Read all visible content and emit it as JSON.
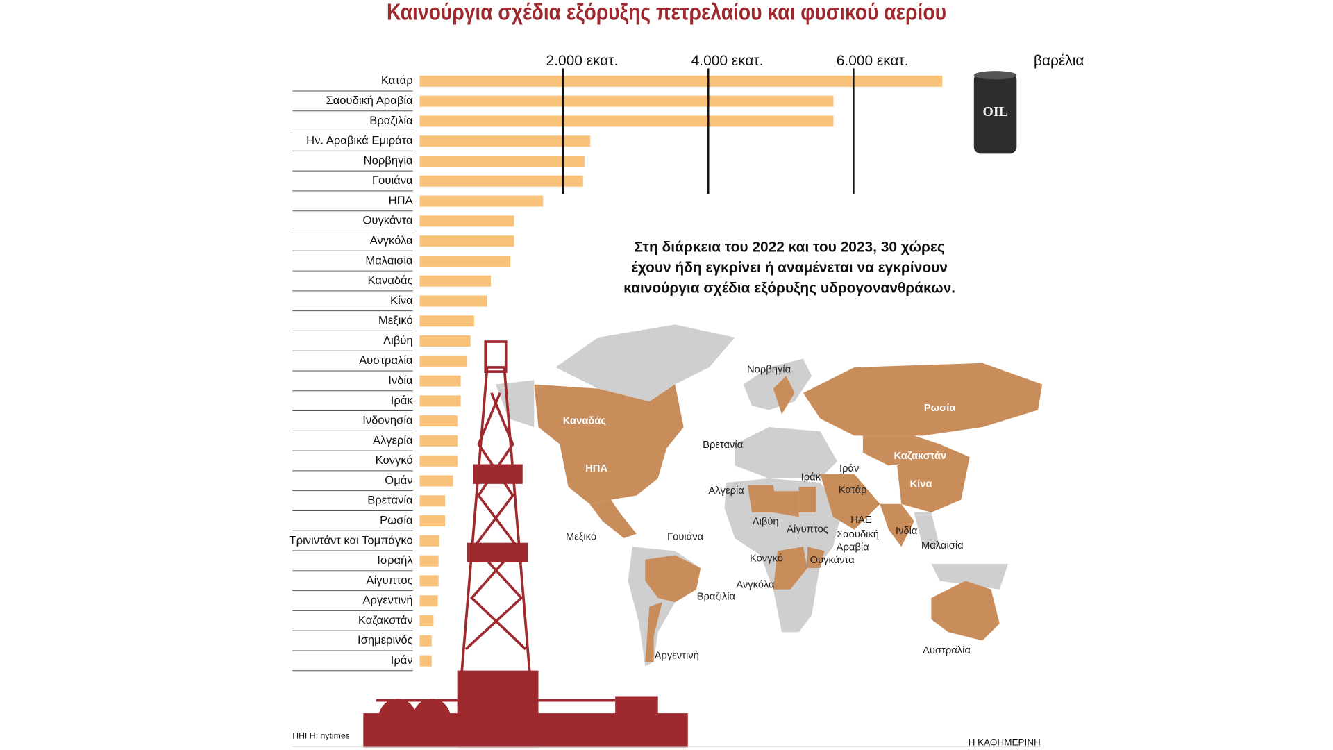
{
  "chart_data": {
    "type": "bar",
    "orientation": "horizontal",
    "title": "Καινούργια σχέδια εξόρυξης πετρελαίου και φυσικού αερίου",
    "unit_label": "βαρέλια",
    "categories": [
      "Κατάρ",
      "Σαουδική Αραβία",
      "Βραζιλία",
      "Ην. Αραβικά Εμιράτα",
      "Νορβηγία",
      "Γουιάνα",
      "ΗΠΑ",
      "Ουγκάντα",
      "Ανγκόλα",
      "Μαλαισία",
      "Καναδάς",
      "Κίνα",
      "Μεξικό",
      "Λιβύη",
      "Αυστραλία",
      "Ινδία",
      "Ιράκ",
      "Ινδονησία",
      "Αλγερία",
      "Κονγκό",
      "Ομάν",
      "Βρετανία",
      "Ρωσία",
      "Τρινιντάντ και Τομπάγκο",
      "Ισραήλ",
      "Αίγυπτος",
      "Αργεντινή",
      "Καζακστάν",
      "Ισημερινός",
      "Ιράν"
    ],
    "values": [
      7200,
      5700,
      5700,
      2350,
      2270,
      2250,
      1700,
      1300,
      1300,
      1250,
      980,
      930,
      750,
      700,
      650,
      565,
      565,
      520,
      520,
      520,
      460,
      350,
      350,
      270,
      260,
      260,
      250,
      190,
      165,
      165
    ],
    "color": "#f8c27a",
    "xlim": [
      0,
      8000
    ],
    "xticks": [
      {
        "value": 2000,
        "label": "2.000 εκατ."
      },
      {
        "value": 4000,
        "label": "4.000 εκατ."
      },
      {
        "value": 6000,
        "label": "6.000 εκατ."
      }
    ],
    "grid": true,
    "annotation": [
      "Στη διάρκεια του 2022 και του 2023, 30 χώρες",
      "έχουν ήδη εγκρίνει ή αναμένεται να εγκρίνουν",
      "καινούργια σχέδια εξόρυξης υδρογονανθράκων."
    ],
    "source": "ΠΗΓΗ: nytimes",
    "publisher": "Η ΚΑΘΗΜΕΡΙΝΗ",
    "barrel_label": "OIL",
    "map_labels": [
      "Νορβηγία",
      "Ρωσία",
      "Καναδάς",
      "Βρετανία",
      "Καζακστάν",
      "Ιράν",
      "ΗΠΑ",
      "Ιράκ",
      "Αλγερία",
      "Κατάρ",
      "Κίνα",
      "ΗΑΕ",
      "Λιβύη",
      "Αίγυπτος",
      "Σαουδική",
      "Αραβία",
      "Ινδία",
      "Μεξικό",
      "Γουιάνα",
      "Μαλαισία",
      "Κονγκό",
      "Ουγκάντα",
      "Ανγκόλα",
      "Βραζιλία",
      "Αργεντινή",
      "Αυστραλία"
    ]
  }
}
